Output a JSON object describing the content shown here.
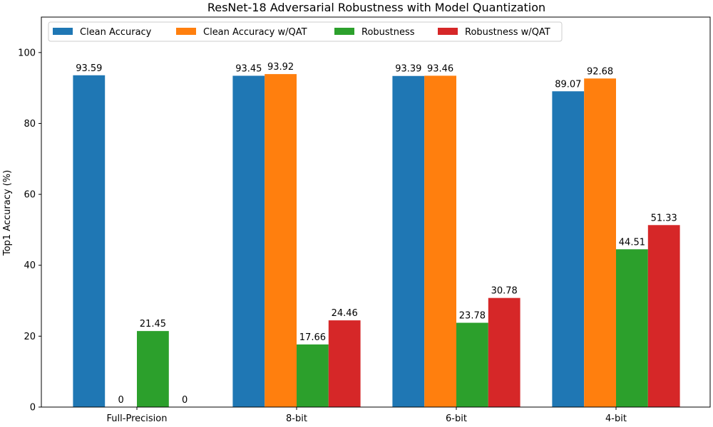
{
  "chart_data": {
    "type": "bar",
    "title": "ResNet-18 Adversarial Robustness with Model Quantization",
    "xlabel": "",
    "ylabel": "Top1 Accuracy (%)",
    "ylim": [
      0,
      110
    ],
    "yticks": [
      0,
      20,
      40,
      60,
      80,
      100
    ],
    "categories": [
      "Full-Precision",
      "8-bit",
      "6-bit",
      "4-bit"
    ],
    "series": [
      {
        "name": "Clean Accuracy",
        "color": "#1f77b4",
        "values": [
          93.59,
          93.45,
          93.39,
          89.07
        ],
        "labels": [
          "93.59",
          "93.45",
          "93.39",
          "89.07"
        ]
      },
      {
        "name": "Clean Accuracy w/QAT",
        "color": "#ff7f0e",
        "values": [
          0,
          93.92,
          93.46,
          92.68
        ],
        "labels": [
          "0",
          "93.92",
          "93.46",
          "92.68"
        ]
      },
      {
        "name": "Robustness",
        "color": "#2ca02c",
        "values": [
          21.45,
          17.66,
          23.78,
          44.51
        ],
        "labels": [
          "21.45",
          "17.66",
          "23.78",
          "44.51"
        ]
      },
      {
        "name": "Robustness w/QAT",
        "color": "#d62728",
        "values": [
          0,
          24.46,
          30.78,
          51.33
        ],
        "labels": [
          "0",
          "24.46",
          "30.78",
          "51.33"
        ]
      }
    ],
    "legend": {
      "placement": "top",
      "columns": 4
    },
    "grid": false
  }
}
